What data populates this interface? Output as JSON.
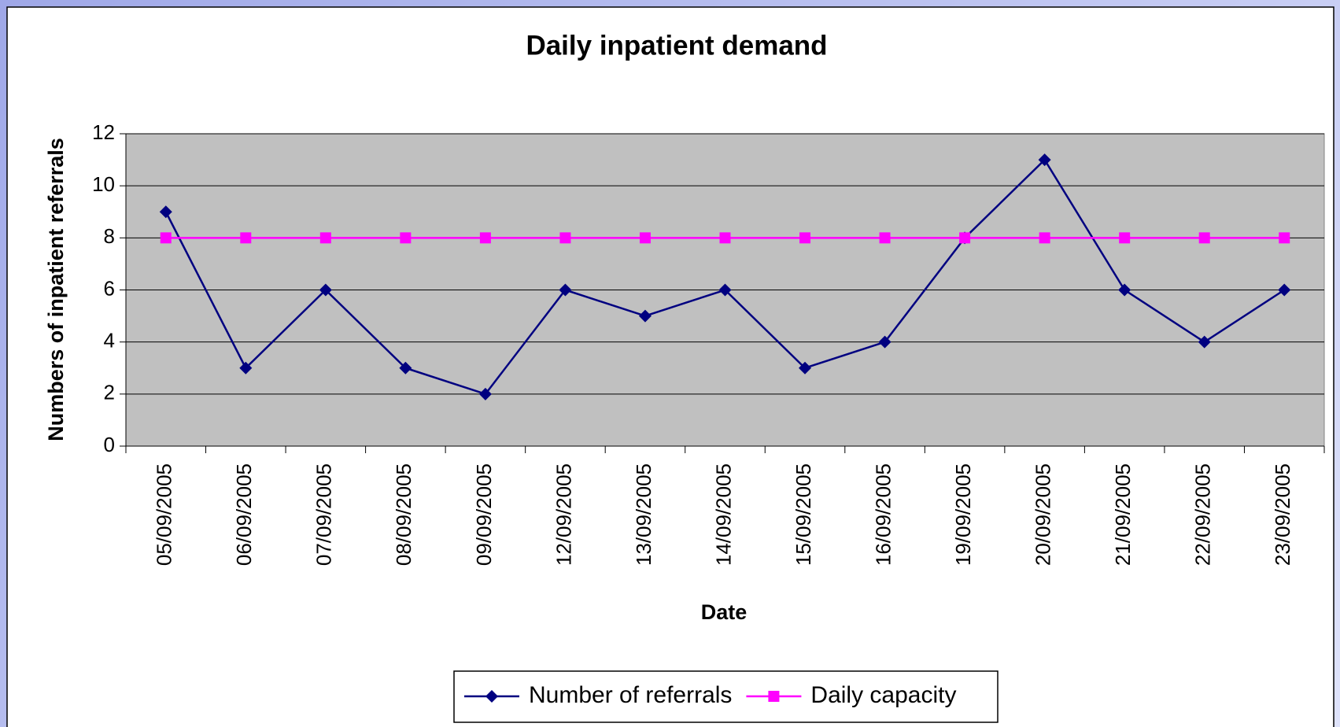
{
  "chart_data": {
    "type": "line",
    "title": "Daily inpatient demand",
    "xlabel": "Date",
    "ylabel": "Numbers of inpatient referrals",
    "categories": [
      "05/09/2005",
      "06/09/2005",
      "07/09/2005",
      "08/09/2005",
      "09/09/2005",
      "12/09/2005",
      "13/09/2005",
      "14/09/2005",
      "15/09/2005",
      "16/09/2005",
      "19/09/2005",
      "20/09/2005",
      "21/09/2005",
      "22/09/2005",
      "23/09/2005"
    ],
    "series": [
      {
        "name": "Number of referrals",
        "color": "#000080",
        "marker": "diamond",
        "values": [
          9,
          3,
          6,
          3,
          2,
          6,
          5,
          6,
          3,
          4,
          8,
          11,
          6,
          4,
          6
        ]
      },
      {
        "name": "Daily capacity",
        "color": "#ff00ff",
        "marker": "square",
        "values": [
          8,
          8,
          8,
          8,
          8,
          8,
          8,
          8,
          8,
          8,
          8,
          8,
          8,
          8,
          8
        ]
      }
    ],
    "ylim": [
      0,
      12
    ],
    "yticks": [
      0,
      2,
      4,
      6,
      8,
      10,
      12
    ],
    "grid": true,
    "legend": "bottom"
  }
}
